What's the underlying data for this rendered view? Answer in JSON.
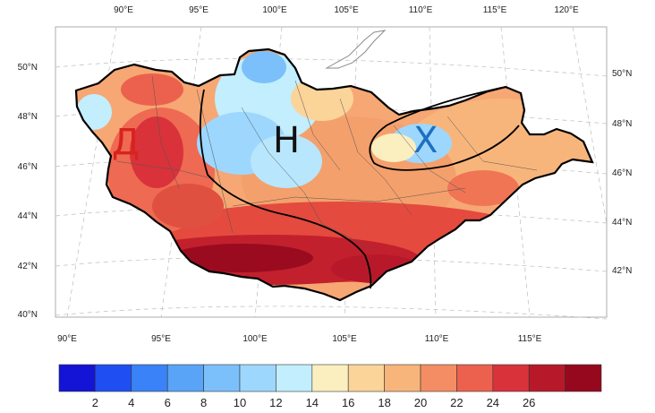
{
  "map": {
    "top_lon_labels": [
      "90°E",
      "95°E",
      "100°E",
      "105°E",
      "110°E",
      "115°E",
      "120°E"
    ],
    "bottom_lon_labels": [
      "90°E",
      "95°E",
      "100°E",
      "105°E",
      "110°E",
      "115°E"
    ],
    "left_lat_labels": [
      "50°N",
      "48°N",
      "46°N",
      "44°N",
      "42°N",
      "40°N"
    ],
    "right_lat_labels": [
      "50°N",
      "48°N",
      "46°N",
      "44°N",
      "42°N"
    ],
    "regions": [
      {
        "letter": "Д",
        "color": "#d8231f"
      },
      {
        "letter": "Н",
        "color": "#111111"
      },
      {
        "letter": "Х",
        "color": "#1f6fbf"
      }
    ]
  },
  "colorbar": {
    "colors": [
      "#1414d6",
      "#1f4ff2",
      "#3a82f7",
      "#5aa4f8",
      "#7cc0fb",
      "#9ed7fd",
      "#c2eefe",
      "#fbeebf",
      "#fbd49a",
      "#f8b57b",
      "#f48d63",
      "#ec614e",
      "#d9323b",
      "#b7192a",
      "#96081d"
    ],
    "labels": [
      "2",
      "4",
      "6",
      "8",
      "10",
      "12",
      "14",
      "16",
      "18",
      "20",
      "22",
      "24",
      "26"
    ]
  }
}
